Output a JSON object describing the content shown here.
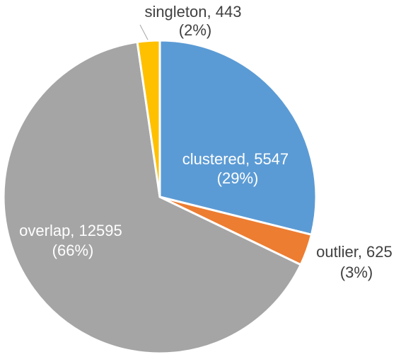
{
  "chart_data": {
    "type": "pie",
    "title": "",
    "slices": [
      {
        "label": "clustered",
        "value": 5547,
        "percent": "29%",
        "color": "#5B9BD5",
        "text_line1": "clustered, 5547",
        "text_line2": "(29%)"
      },
      {
        "label": "outlier",
        "value": 625,
        "percent": "3%",
        "color": "#ED7D31",
        "text_line1": "outlier, 625",
        "text_line2": "(3%)"
      },
      {
        "label": "overlap",
        "value": 12595,
        "percent": "66%",
        "color": "#A5A5A5",
        "text_line1": "overlap, 12595",
        "text_line2": "(66%)"
      },
      {
        "label": "singleton",
        "value": 443,
        "percent": "2%",
        "color": "#FFC000",
        "text_line1": "singleton, 443",
        "text_line2": "(2%)"
      }
    ],
    "start": "12 o'clock",
    "direction": "clockwise",
    "legend": "none"
  }
}
